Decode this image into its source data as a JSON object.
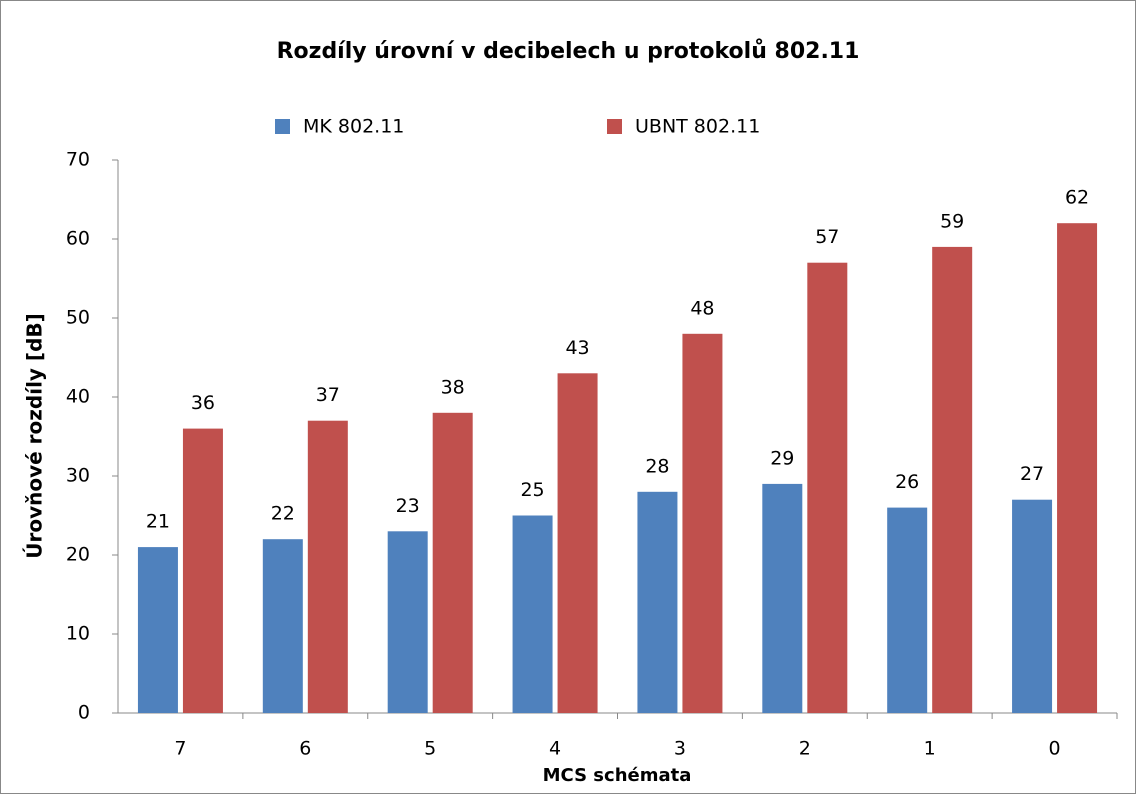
{
  "chart_data": {
    "type": "bar",
    "title": "Rozdíly úrovní v decibelech u protokolů 802.11",
    "x_label": "MCS schémata",
    "y_label": "Úrovňové rozdíly [dB]",
    "categories": [
      "7",
      "6",
      "5",
      "4",
      "3",
      "2",
      "1",
      "0"
    ],
    "series": [
      {
        "name": "MK 802.11",
        "color": "#4f81bd",
        "values": [
          21,
          22,
          23,
          25,
          28,
          29,
          26,
          27
        ]
      },
      {
        "name": "UBNT 802.11",
        "color": "#c0504d",
        "values": [
          36,
          37,
          38,
          43,
          48,
          57,
          59,
          62
        ]
      }
    ],
    "ylim": [
      0,
      70
    ],
    "yticks": [
      0,
      10,
      20,
      30,
      40,
      50,
      60,
      70
    ],
    "grid": false,
    "legend": "top"
  }
}
